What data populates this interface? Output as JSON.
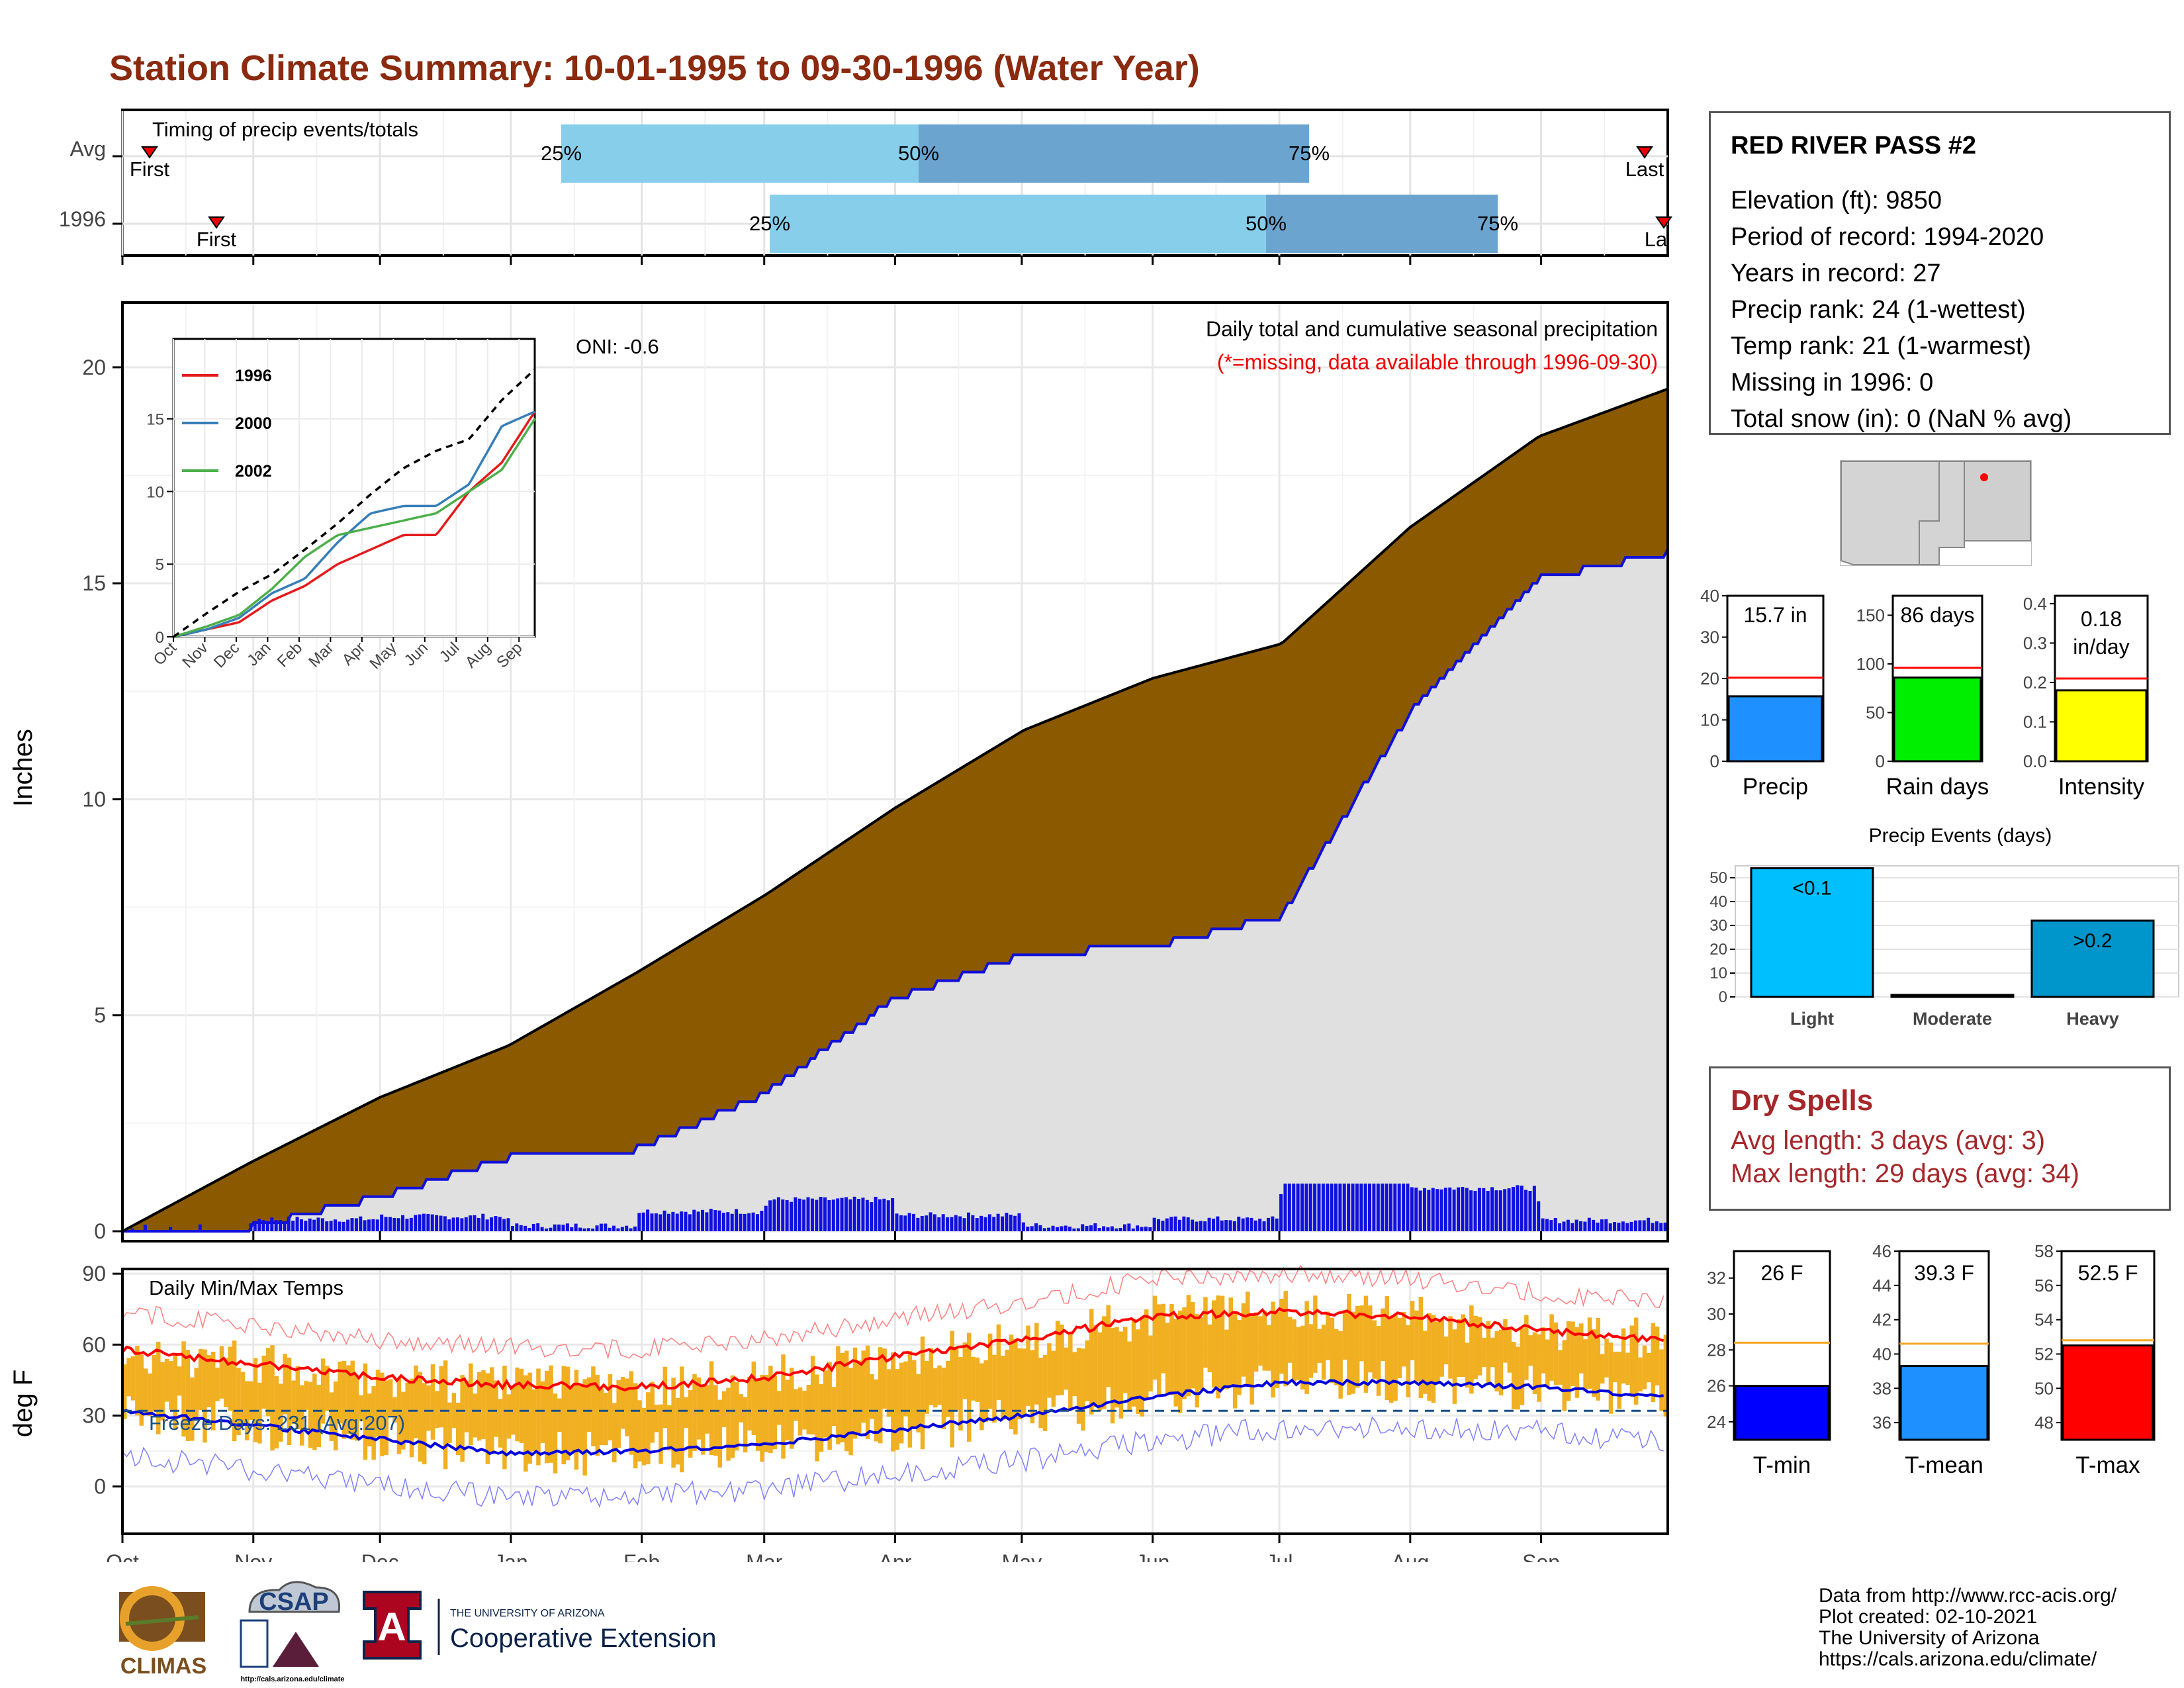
{
  "title": "Station Climate Summary: 10-01-1995 to 09-30-1996 (Water Year)",
  "colors": {
    "title": "#8b2a0f",
    "precip_fill": "#8b5a00",
    "avg_fill": "#e0e0e0",
    "avg_line": "#1010d8",
    "bar_light": "#87ceeb",
    "bar_dark": "#6ba5cf",
    "temp_bar": "#f0b022",
    "tmax": "#ff0000",
    "tmin": "#0000dd",
    "dry": "#a5272a"
  },
  "timing": {
    "label": "Timing of precip events/totals",
    "rows": [
      {
        "name": "Avg",
        "first": "First",
        "last": "Last",
        "p25": "25%",
        "p50": "50%",
        "p75": "75%"
      },
      {
        "name": "1996",
        "first": "First",
        "last": "Last",
        "p25": "25%",
        "p50": "50%",
        "p75": "75%"
      }
    ]
  },
  "station": {
    "name": "RED RIVER PASS #2",
    "lines": [
      "Elevation (ft): 9850",
      "Period of record: 1994-2020",
      "Years in record: 27",
      "Precip rank: 24 (1-wettest)",
      "Temp rank: 21 (1-warmest)",
      "Missing in 1996: 0",
      "Total snow (in): 0 (NaN % avg)"
    ]
  },
  "main": {
    "ylabel": "Inches",
    "yticks": [
      "0",
      "5",
      "10",
      "15",
      "20"
    ],
    "note1": "Daily total and cumulative seasonal precipitation",
    "note2": "(*=missing, data available through 1996-09-30)",
    "oni": "ONI: -0.6",
    "months": [
      "Oct",
      "Nov",
      "Dec",
      "Jan",
      "Feb",
      "Mar",
      "Apr",
      "May",
      "Jun",
      "Jul",
      "Aug",
      "Sep"
    ]
  },
  "inset": {
    "yticks": [
      "0",
      "5",
      "10",
      "15"
    ],
    "months": [
      "Oct",
      "Nov",
      "Dec",
      "Jan",
      "Feb",
      "Mar",
      "Apr",
      "May",
      "Jun",
      "Jul",
      "Aug",
      "Sep"
    ],
    "legend": [
      "1996",
      "2000",
      "2002"
    ]
  },
  "bars3": {
    "precip": {
      "label": "Precip",
      "value_text": "15.7 in",
      "yticks": [
        "0",
        "10",
        "20",
        "30",
        "40"
      ]
    },
    "raindays": {
      "label": "Rain days",
      "value_text": "86 days",
      "yticks": [
        "0",
        "50",
        "100",
        "150"
      ]
    },
    "intensity": {
      "label": "Intensity",
      "value_text1": "0.18",
      "value_text2": "in/day",
      "yticks": [
        "0.0",
        "0.1",
        "0.2",
        "0.3",
        "0.4"
      ]
    }
  },
  "events": {
    "title": "Precip Events (days)",
    "yticks": [
      "0",
      "10",
      "20",
      "30",
      "40",
      "50"
    ],
    "categories": [
      "Light",
      "Moderate",
      "Heavy"
    ],
    "labels": [
      "<0.1",
      "",
      ">0.2"
    ]
  },
  "dry_spells": {
    "title": "Dry Spells",
    "avg": "Avg length: 3 days (avg: 3)",
    "max": "Max length: 29 days (avg: 34)"
  },
  "temps": {
    "ylabel": "deg F",
    "yticks": [
      "0",
      "30",
      "60",
      "90"
    ],
    "label": "Daily Min/Max Temps",
    "freeze": "Freeze Days: 231 (Avg:207)"
  },
  "tbars": {
    "tmin": {
      "label": "T-min",
      "value_text": "26 F",
      "yticks": [
        "24",
        "26",
        "28",
        "30",
        "32"
      ]
    },
    "tmean": {
      "label": "T-mean",
      "value_text": "39.3 F",
      "yticks": [
        "36",
        "38",
        "40",
        "42",
        "44",
        "46"
      ]
    },
    "tmax": {
      "label": "T-max",
      "value_text": "52.5 F",
      "yticks": [
        "48",
        "50",
        "52",
        "54",
        "56",
        "58"
      ]
    }
  },
  "logos": {
    "climas": "CLIMAS",
    "csap": "CSAP",
    "csap_url": "http://cals.arizona.edu/climate",
    "ua_small": "THE UNIVERSITY OF ARIZONA",
    "ua_big": "Cooperative Extension"
  },
  "credits": [
    "Data from http://www.rcc-acis.org/",
    "Plot created: 02-10-2021",
    "The University of Arizona",
    "https://cals.arizona.edu/climate/"
  ],
  "chart_data": [
    {
      "type": "area",
      "title": "Daily total and cumulative seasonal precipitation",
      "ylabel": "Inches",
      "ylim": [
        0,
        21.5
      ],
      "x": [
        "Oct",
        "Nov",
        "Dec",
        "Jan",
        "Feb",
        "Mar",
        "Apr",
        "May",
        "Jun",
        "Jul",
        "Aug",
        "Sep",
        "Sep-30"
      ],
      "series": [
        {
          "name": "1996 cumulative",
          "values": [
            0,
            0.1,
            0.8,
            1.7,
            1.9,
            3.2,
            5.4,
            6.4,
            6.6,
            7.3,
            12.0,
            15.1,
            15.7
          ]
        },
        {
          "name": "Avg cumulative",
          "values": [
            0,
            1.6,
            3.1,
            4.3,
            6.0,
            7.8,
            9.8,
            11.6,
            12.8,
            13.6,
            16.3,
            18.4,
            19.5
          ]
        }
      ]
    },
    {
      "type": "line",
      "ylim": [
        0,
        20
      ],
      "x": [
        "Oct",
        "Nov",
        "Dec",
        "Jan",
        "Feb",
        "Mar",
        "Apr",
        "May",
        "Jun",
        "Jul",
        "Aug",
        "Sep"
      ],
      "series": [
        {
          "name": "1996",
          "values": [
            0,
            0.5,
            1.0,
            2.5,
            3.5,
            5.0,
            6.0,
            7.0,
            7.0,
            10.0,
            12.0,
            15.5
          ]
        },
        {
          "name": "2000",
          "values": [
            0,
            0.5,
            1.3,
            3.0,
            4.0,
            6.5,
            8.5,
            9.0,
            9.0,
            10.5,
            14.5,
            15.5
          ]
        },
        {
          "name": "2002",
          "values": [
            0,
            0.7,
            1.5,
            3.3,
            5.5,
            7.0,
            7.5,
            8.0,
            8.5,
            10.0,
            11.5,
            15.0
          ]
        },
        {
          "name": "Avg",
          "values": [
            0,
            1.6,
            3.1,
            4.3,
            6.0,
            7.8,
            9.8,
            11.6,
            12.8,
            13.6,
            16.3,
            18.4
          ]
        }
      ]
    },
    {
      "type": "bar",
      "categories": [
        "Precip"
      ],
      "values": [
        15.7
      ],
      "average": 20.2,
      "ylim": [
        0,
        40
      ]
    },
    {
      "type": "bar",
      "categories": [
        "Rain days"
      ],
      "values": [
        86
      ],
      "average": 96,
      "ylim": [
        0,
        170
      ]
    },
    {
      "type": "bar",
      "categories": [
        "Intensity"
      ],
      "values": [
        0.18
      ],
      "average": 0.21,
      "ylim": [
        0,
        0.42
      ]
    },
    {
      "type": "bar",
      "title": "Precip Events (days)",
      "categories": [
        "Light",
        "Moderate",
        "Heavy"
      ],
      "values": [
        54,
        0,
        32
      ],
      "ylim": [
        0,
        55
      ]
    },
    {
      "type": "line",
      "title": "Daily Min/Max Temps",
      "ylabel": "deg F",
      "ylim": [
        -20,
        92
      ],
      "x": [
        "Oct",
        "Nov",
        "Dec",
        "Jan",
        "Feb",
        "Mar",
        "Apr",
        "May",
        "Jun",
        "Jul",
        "Aug",
        "Sep",
        "Sep-30"
      ],
      "series": [
        {
          "name": "Avg Tmax",
          "values": [
            58,
            52,
            46,
            43,
            42,
            46,
            55,
            62,
            72,
            74,
            72,
            66,
            62
          ]
        },
        {
          "name": "Avg Tmin",
          "values": [
            32,
            26,
            20,
            14,
            15,
            18,
            24,
            30,
            38,
            44,
            44,
            42,
            38
          ]
        }
      ],
      "freeze_line": 32
    },
    {
      "type": "bar",
      "categories": [
        "T-min"
      ],
      "values": [
        26
      ],
      "average": 28.4,
      "ylim": [
        23,
        33.5
      ]
    },
    {
      "type": "bar",
      "categories": [
        "T-mean"
      ],
      "values": [
        39.3
      ],
      "average": 40.6,
      "ylim": [
        35,
        46
      ]
    },
    {
      "type": "bar",
      "categories": [
        "T-max"
      ],
      "values": [
        52.5
      ],
      "average": 52.8,
      "ylim": [
        47,
        58
      ]
    }
  ]
}
